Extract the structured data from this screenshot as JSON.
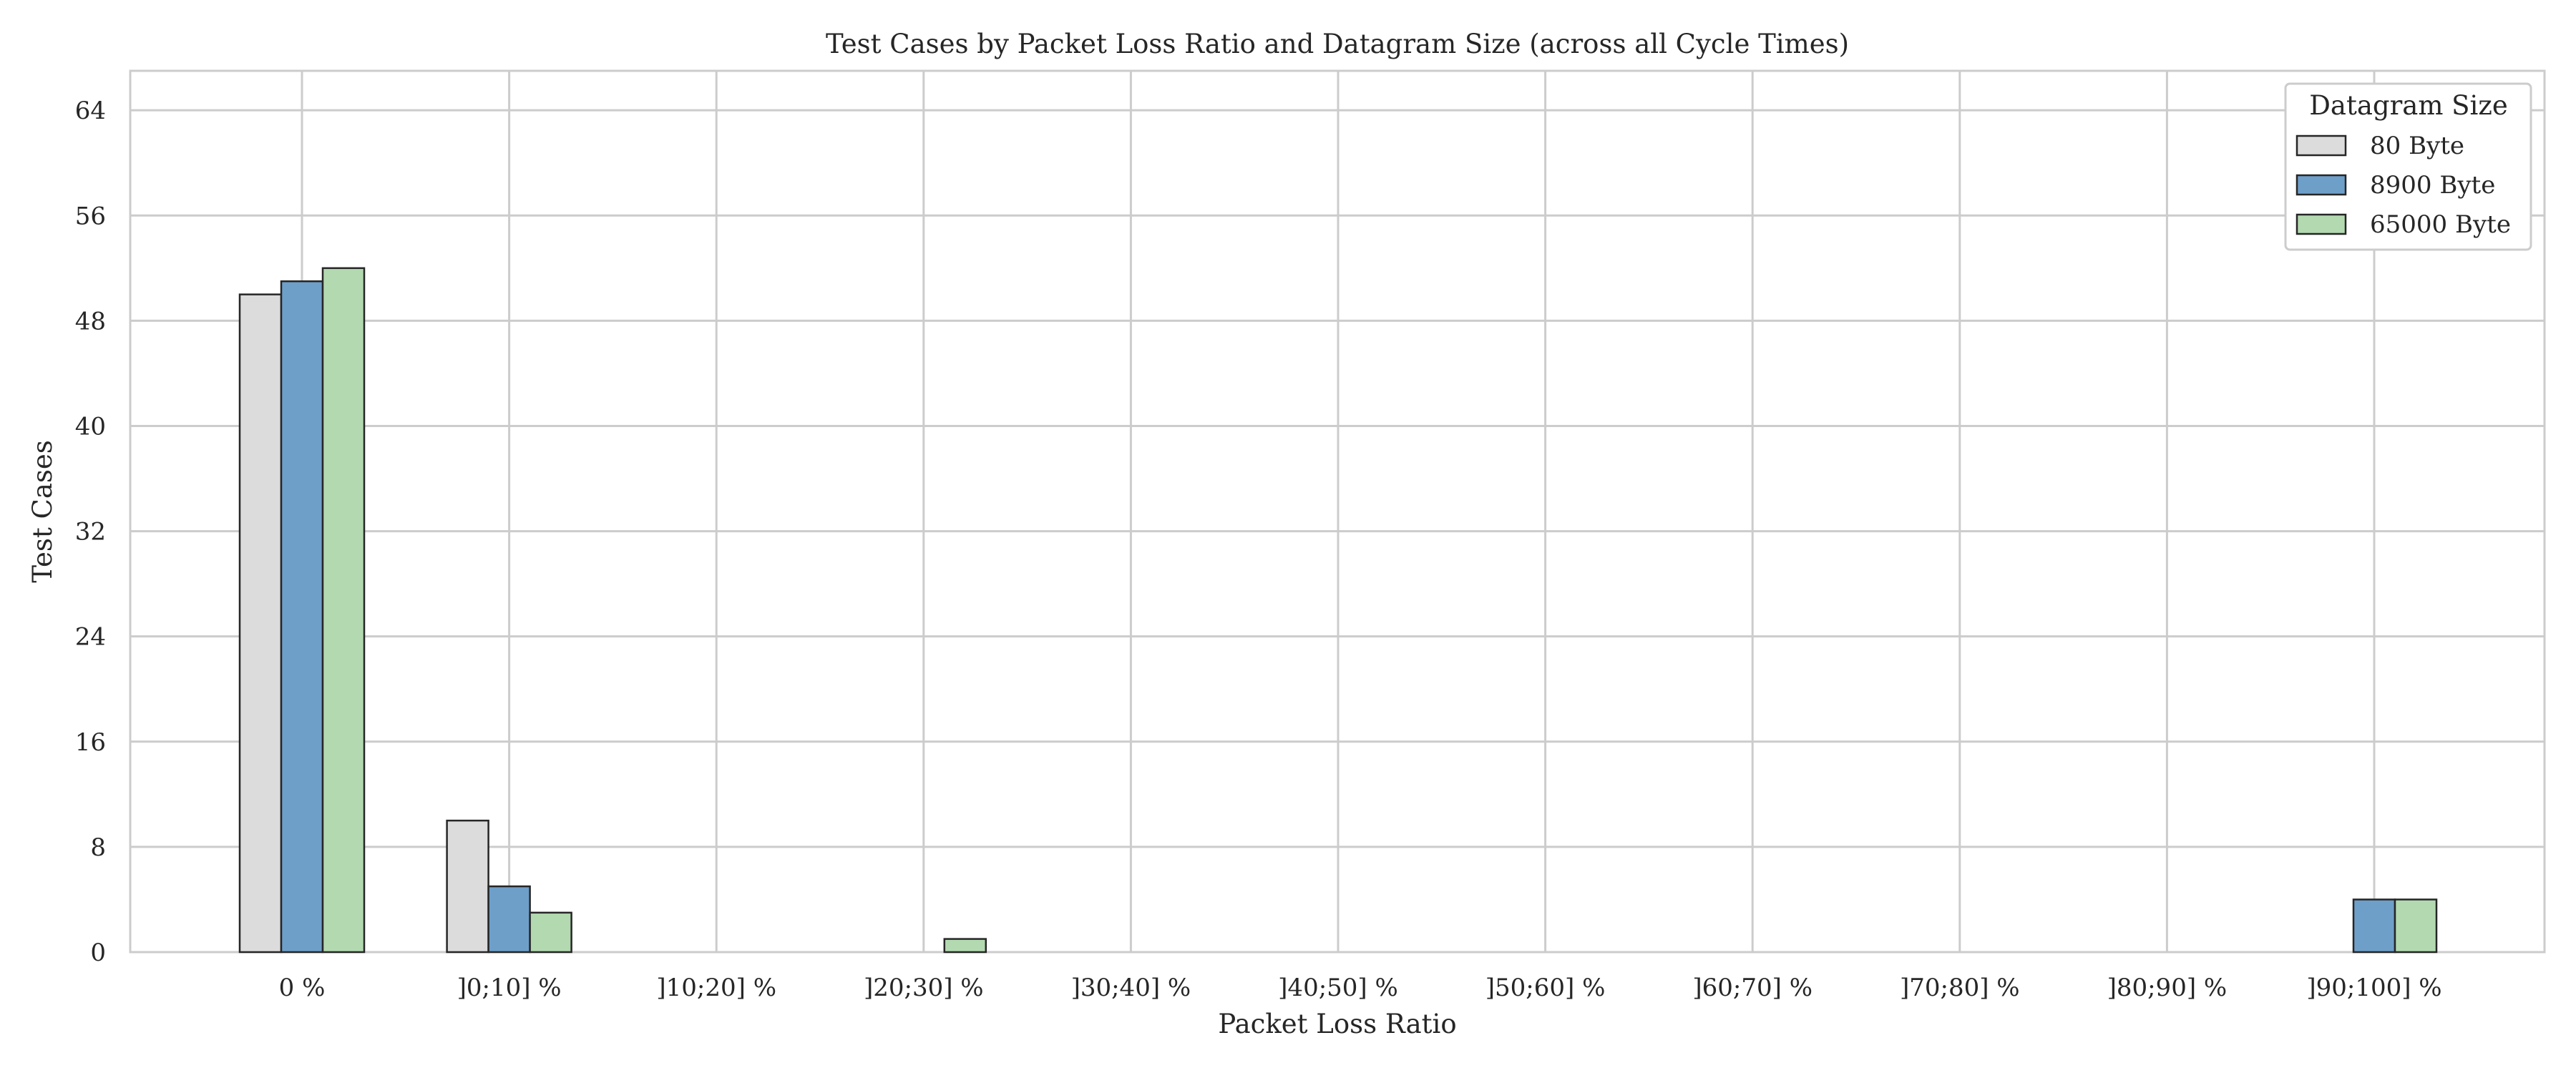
{
  "chart_data": {
    "type": "bar",
    "title": "Test Cases by Packet Loss Ratio and Datagram Size (across all Cycle Times)",
    "xlabel": "Packet Loss Ratio",
    "ylabel": "Test Cases",
    "categories": [
      "0 %",
      "]0;10] %",
      "]10;20] %",
      "]20;30] %",
      "]30;40] %",
      "]40;50] %",
      "]50;60] %",
      "]60;70] %",
      "]70;80] %",
      "]80;90] %",
      "]90;100] %"
    ],
    "series": [
      {
        "name": "80 Byte",
        "color": "#dcdcdc",
        "values": [
          50,
          10,
          0,
          0,
          0,
          0,
          0,
          0,
          0,
          0,
          0
        ]
      },
      {
        "name": "8900 Byte",
        "color": "#6e9fc9",
        "values": [
          51,
          5,
          0,
          0,
          0,
          0,
          0,
          0,
          0,
          0,
          4
        ]
      },
      {
        "name": "65000 Byte",
        "color": "#b3d9b0",
        "values": [
          52,
          3,
          0,
          1,
          0,
          0,
          0,
          0,
          0,
          0,
          4
        ]
      }
    ],
    "yticks": [
      0,
      8,
      16,
      24,
      32,
      40,
      48,
      56,
      64
    ],
    "ylim": [
      0,
      67
    ],
    "grid": true,
    "legend": {
      "title": "Datagram Size",
      "position": "top-right"
    }
  }
}
